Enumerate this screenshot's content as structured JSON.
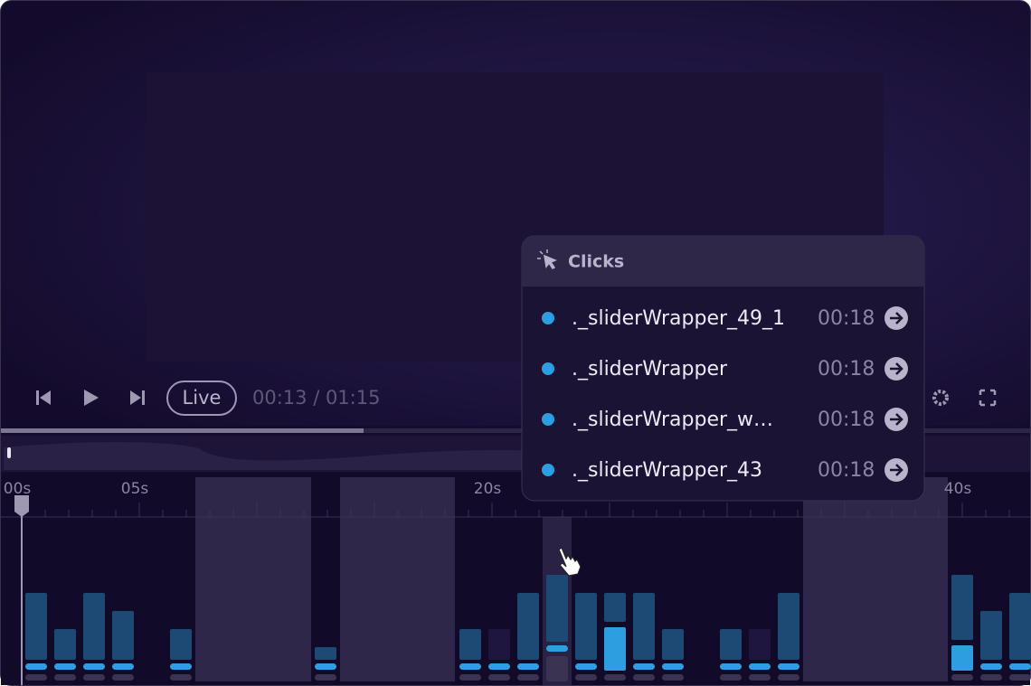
{
  "player": {
    "live_label": "Live",
    "time": "00:13 / 01:15",
    "timeline_labels": [
      "00s",
      "05s",
      "20s",
      "40s"
    ]
  },
  "clicks_panel": {
    "title": "Clicks",
    "items": [
      {
        "label": "._sliderWrapper_49_1",
        "time": "00:18"
      },
      {
        "label": "._sliderWrapper",
        "time": "00:18"
      },
      {
        "label": "._sliderWrapper_w…",
        "time": "00:18"
      },
      {
        "label": "._sliderWrapper_43",
        "time": "00:18"
      }
    ]
  }
}
